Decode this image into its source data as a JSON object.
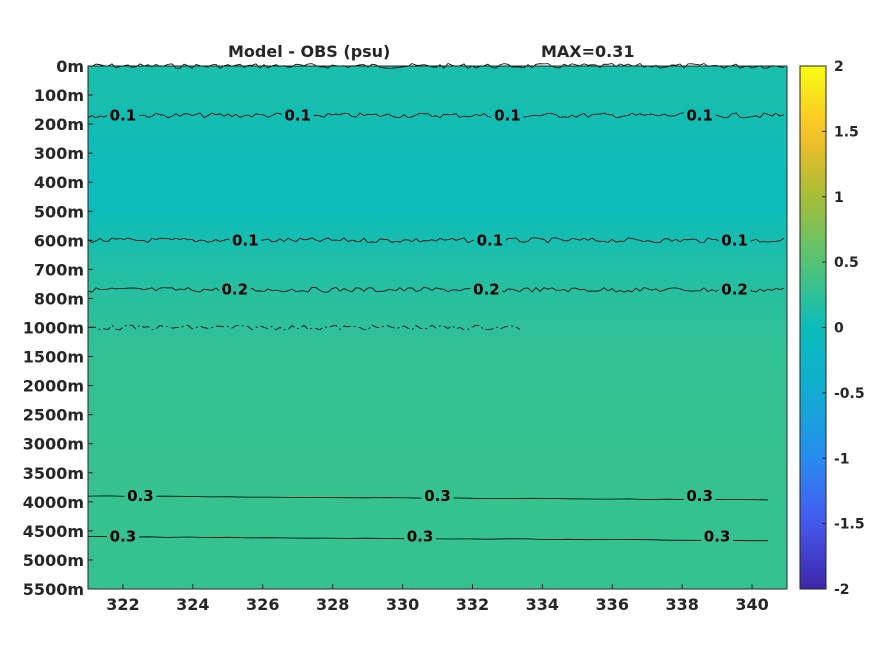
{
  "chart_data": {
    "type": "heatmap",
    "title": "Model - OBS (psu)",
    "annotation": "MAX=0.31",
    "x_ticks": [
      "322",
      "324",
      "326",
      "328",
      "330",
      "332",
      "334",
      "336",
      "338",
      "340"
    ],
    "x_tick_values": [
      322,
      324,
      326,
      328,
      330,
      332,
      334,
      336,
      338,
      340
    ],
    "xlim": [
      321,
      341
    ],
    "y_ticks": [
      "0m",
      "100m",
      "200m",
      "300m",
      "400m",
      "500m",
      "600m",
      "700m",
      "800m",
      "1000m",
      "1500m",
      "2000m",
      "2500m",
      "3000m",
      "3500m",
      "4000m",
      "4500m",
      "5000m",
      "5500m"
    ],
    "colorbar": {
      "range": [
        -2,
        2
      ],
      "ticks": [
        "2",
        "1.5",
        "1",
        "0.5",
        "0",
        "-0.5",
        "-1",
        "-1.5",
        "-2"
      ],
      "colormap": "parula"
    },
    "field_by_depth_row": [
      0.1,
      0.1,
      0.05,
      0.02,
      0.0,
      0.0,
      0.08,
      0.15,
      0.2,
      0.24,
      0.27,
      0.28,
      0.29,
      0.3,
      0.31,
      0.3,
      0.3,
      0.3,
      0.3
    ],
    "contours": [
      {
        "level": "0.1",
        "depth_index": 0,
        "labels_at_x": []
      },
      {
        "level": "0.1",
        "depth_index": 1.7,
        "labels_at_x": [
          322,
          327,
          333,
          338.5
        ]
      },
      {
        "level": "0.1",
        "depth_index": 6.0,
        "labels_at_x": [
          325.5,
          332.5,
          339.5
        ]
      },
      {
        "level": "0.2",
        "depth_index": 7.7,
        "labels_at_x": [
          325.2,
          332.4,
          339.5
        ]
      },
      {
        "level": "0.2",
        "depth_index": 9.0,
        "labels_at_x": []
      },
      {
        "level": "0.3",
        "depth_index": 14.8,
        "labels_at_x": [
          322.5,
          331,
          338.5
        ]
      },
      {
        "level": "0.3",
        "depth_index": 16.2,
        "labels_at_x": [
          322,
          330.5,
          339
        ]
      }
    ]
  }
}
